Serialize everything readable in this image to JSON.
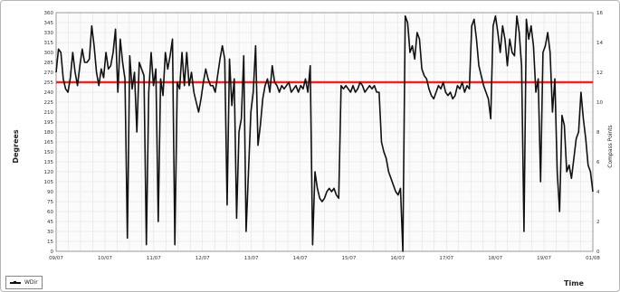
{
  "chart_data": {
    "type": "line",
    "ylabel": "Degrees",
    "xlabel": "Time",
    "y2label": "Compass Points",
    "ylim": [
      0,
      360
    ],
    "y2lim": [
      0,
      16
    ],
    "y_ticks": [
      0,
      15,
      30,
      45,
      60,
      75,
      90,
      105,
      120,
      135,
      150,
      165,
      180,
      195,
      210,
      225,
      240,
      255,
      270,
      285,
      300,
      315,
      330,
      345,
      360
    ],
    "y2_ticks": [
      0,
      2,
      4,
      6,
      8,
      10,
      12,
      14,
      16
    ],
    "x_ticks": [
      "09/07",
      "10/07",
      "11/07",
      "12/07",
      "13/07",
      "14/07",
      "15/07",
      "16/07",
      "17/07",
      "18/07",
      "19/07",
      "01/08"
    ],
    "grid": true,
    "reference_line": {
      "value": 255,
      "color": "#e8262a"
    },
    "series": [
      {
        "name": "WDir",
        "color": "#111111",
        "x_range": [
          0,
          11
        ],
        "values": [
          270,
          305,
          300,
          260,
          245,
          240,
          262,
          300,
          270,
          250,
          280,
          305,
          285,
          285,
          290,
          340,
          310,
          270,
          250,
          275,
          262,
          300,
          275,
          280,
          300,
          335,
          240,
          320,
          285,
          260,
          20,
          295,
          245,
          270,
          180,
          285,
          275,
          265,
          10,
          240,
          300,
          250,
          275,
          45,
          260,
          235,
          300,
          275,
          295,
          320,
          10,
          255,
          245,
          300,
          250,
          300,
          250,
          270,
          240,
          225,
          210,
          230,
          255,
          275,
          260,
          250,
          250,
          240,
          265,
          290,
          310,
          290,
          70,
          290,
          220,
          260,
          50,
          180,
          200,
          295,
          30,
          120,
          210,
          240,
          310,
          160,
          190,
          230,
          250,
          260,
          240,
          280,
          255,
          250,
          240,
          250,
          245,
          250,
          255,
          240,
          245,
          250,
          240,
          250,
          245,
          260,
          240,
          280,
          10,
          120,
          95,
          80,
          75,
          80,
          90,
          95,
          90,
          95,
          85,
          80,
          250,
          245,
          250,
          245,
          240,
          250,
          240,
          245,
          255,
          250,
          240,
          245,
          250,
          245,
          250,
          240,
          240,
          165,
          150,
          140,
          120,
          110,
          100,
          90,
          85,
          95,
          0,
          355,
          345,
          300,
          310,
          290,
          330,
          320,
          275,
          265,
          260,
          245,
          235,
          230,
          240,
          250,
          245,
          255,
          240,
          235,
          240,
          230,
          235,
          250,
          245,
          255,
          240,
          250,
          245,
          340,
          350,
          320,
          280,
          265,
          250,
          240,
          230,
          200,
          340,
          355,
          330,
          300,
          340,
          320,
          280,
          320,
          300,
          295,
          355,
          330,
          280,
          30,
          350,
          320,
          340,
          310,
          240,
          260,
          105,
          300,
          310,
          330,
          300,
          210,
          260,
          120,
          60,
          205,
          190,
          120,
          130,
          110,
          140,
          170,
          180,
          240,
          200,
          170,
          130,
          120,
          90
        ]
      }
    ],
    "legend": {
      "position": "bottom-left",
      "label": "WDir"
    }
  }
}
